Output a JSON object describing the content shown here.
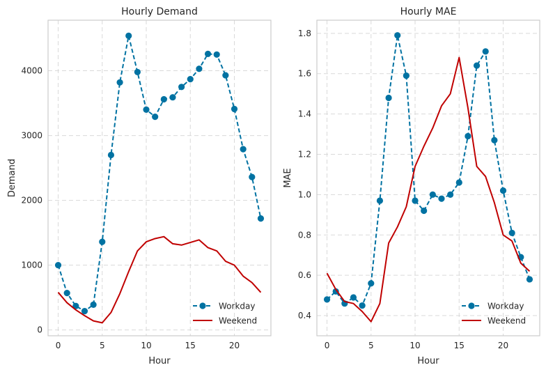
{
  "chart_data": [
    {
      "type": "line",
      "title": "Hourly Demand",
      "xlabel": "Hour",
      "ylabel": "Demand",
      "xlim": [
        -1.15,
        24.15
      ],
      "ylim": [
        -90,
        4780
      ],
      "xticks": [
        0,
        5,
        10,
        15,
        20
      ],
      "yticks": [
        0,
        1000,
        2000,
        3000,
        4000
      ],
      "grid": true,
      "legend": "lower-right",
      "x": [
        0,
        1,
        2,
        3,
        4,
        5,
        6,
        7,
        8,
        9,
        10,
        11,
        12,
        13,
        14,
        15,
        16,
        17,
        18,
        19,
        20,
        21,
        22,
        23
      ],
      "series": [
        {
          "name": "Workday",
          "color": "#0072a2",
          "style": "dashed-markers",
          "values": [
            1000,
            570,
            370,
            290,
            390,
            1360,
            2700,
            3820,
            4540,
            3980,
            3400,
            3290,
            3560,
            3590,
            3750,
            3870,
            4030,
            4260,
            4250,
            3930,
            3410,
            2790,
            2360,
            1720
          ]
        },
        {
          "name": "Weekend",
          "color": "#c00000",
          "style": "solid",
          "values": [
            580,
            420,
            310,
            220,
            140,
            110,
            270,
            560,
            900,
            1220,
            1360,
            1410,
            1440,
            1330,
            1310,
            1350,
            1390,
            1270,
            1220,
            1060,
            1000,
            830,
            730,
            580
          ]
        }
      ]
    },
    {
      "type": "line",
      "title": "Hourly MAE",
      "xlabel": "Hour",
      "ylabel": "MAE",
      "xlim": [
        -1.15,
        24.15
      ],
      "ylim": [
        0.3,
        1.865
      ],
      "xticks": [
        0,
        5,
        10,
        15,
        20
      ],
      "yticks": [
        0.4,
        0.6,
        0.8,
        1.0,
        1.2,
        1.4,
        1.6,
        1.8
      ],
      "grid": true,
      "legend": "lower-right",
      "x": [
        0,
        1,
        2,
        3,
        4,
        5,
        6,
        7,
        8,
        9,
        10,
        11,
        12,
        13,
        14,
        15,
        16,
        17,
        18,
        19,
        20,
        21,
        22,
        23
      ],
      "series": [
        {
          "name": "Workday",
          "color": "#0072a2",
          "style": "dashed-markers",
          "values": [
            0.48,
            0.52,
            0.46,
            0.49,
            0.45,
            0.56,
            0.97,
            1.48,
            1.79,
            1.59,
            0.97,
            0.92,
            1.0,
            0.98,
            1.0,
            1.06,
            1.29,
            1.64,
            1.71,
            1.27,
            1.02,
            0.81,
            0.69,
            0.58
          ]
        },
        {
          "name": "Weekend",
          "color": "#c00000",
          "style": "solid",
          "values": [
            0.61,
            0.53,
            0.47,
            0.46,
            0.42,
            0.37,
            0.46,
            0.76,
            0.84,
            0.94,
            1.14,
            1.24,
            1.33,
            1.44,
            1.5,
            1.68,
            1.43,
            1.14,
            1.09,
            0.96,
            0.8,
            0.77,
            0.66,
            0.62
          ]
        }
      ]
    }
  ]
}
